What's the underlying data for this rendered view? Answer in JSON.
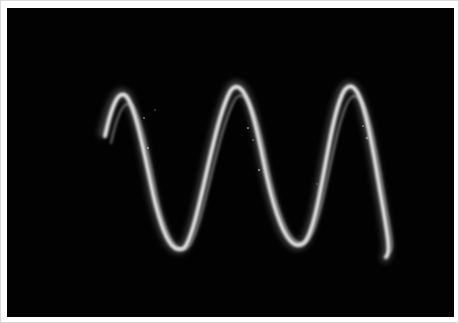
{
  "photo": {
    "subject": "oscilloscope-sine-trace",
    "colors": {
      "background": "#020202",
      "trace": "#e8e8e8",
      "trace_glow": "#9a9a9a",
      "border": "#ffffff"
    }
  }
}
